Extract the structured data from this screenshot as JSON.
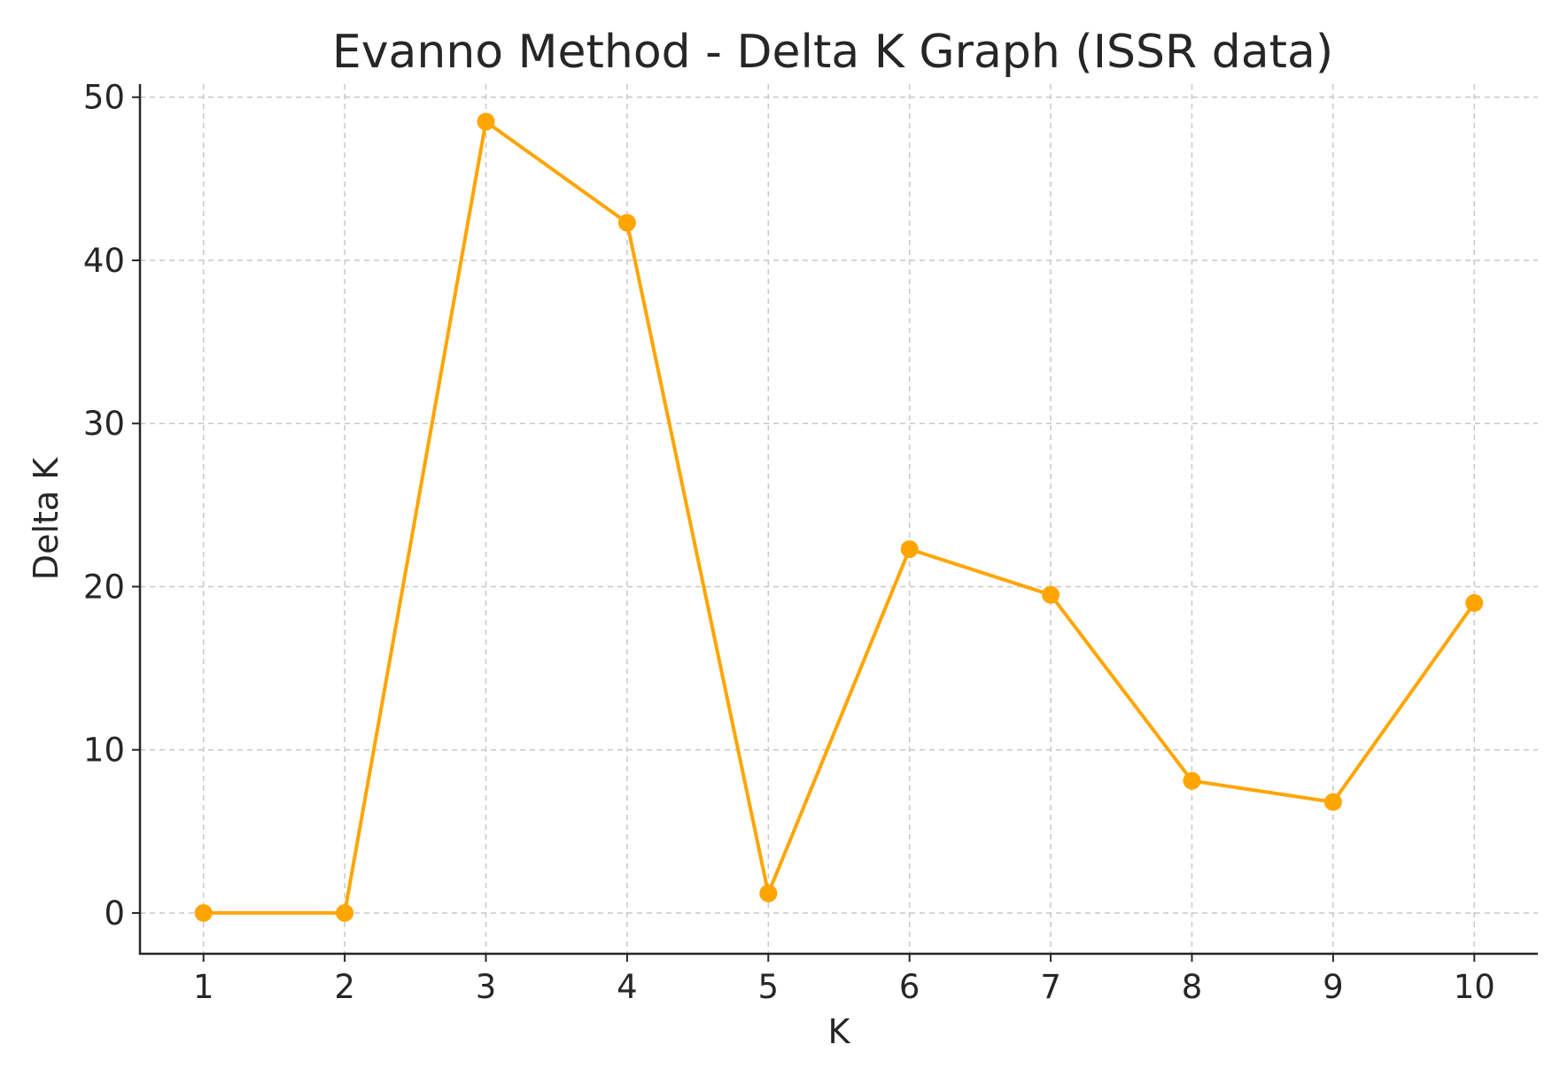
{
  "chart_data": {
    "type": "line",
    "title": "Evanno Method - Delta K Graph (ISSR data)",
    "xlabel": "K",
    "ylabel": "Delta K",
    "x": [
      1,
      2,
      3,
      4,
      5,
      6,
      7,
      8,
      9,
      10
    ],
    "series": [
      {
        "values": [
          0,
          0,
          48.5,
          42.3,
          1.2,
          22.3,
          19.5,
          8.1,
          6.8,
          19.0
        ],
        "color": "#FFA500",
        "marker": "circle"
      }
    ],
    "xlim": [
      0.55,
      10.45
    ],
    "ylim": [
      -2.5,
      50.8
    ],
    "xticks": [
      "1",
      "2",
      "3",
      "4",
      "5",
      "6",
      "7",
      "8",
      "9",
      "10"
    ],
    "yticks": [
      "0",
      "10",
      "20",
      "30",
      "40",
      "50"
    ],
    "grid": true,
    "legend": "none"
  }
}
